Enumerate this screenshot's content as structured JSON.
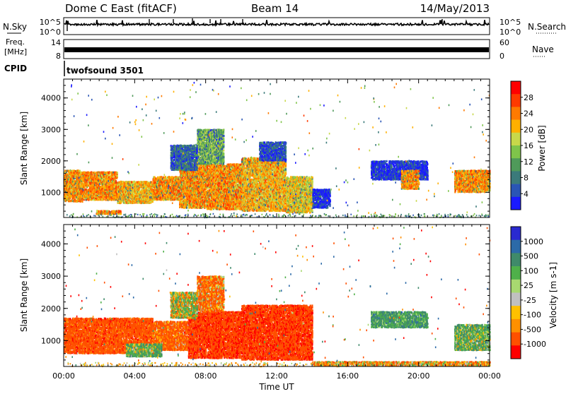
{
  "header": {
    "station": "Dome C East (fitACF)",
    "beam": "Beam 14",
    "date": "14/May/2013"
  },
  "strip_labels": {
    "nsky": "N.Sky",
    "nsky_top": "10^5",
    "nsky_bottom": "10^0",
    "nsearch": "N.Search",
    "nsearch_top": "10^5",
    "nsearch_bottom": "10^0",
    "freq_line1": "Freq.",
    "freq_line2": "[MHz]",
    "freq_top": "14",
    "freq_bottom": "8",
    "nave": "Nave",
    "nave_top": "60",
    "nave_bottom": "0",
    "cpid": "CPID",
    "cpid_value": "twofsound 3501"
  },
  "chart_data": [
    {
      "type": "heatmap",
      "panel": "power",
      "ylabel": "Slant Range [km]",
      "xlabel": "Time UT",
      "x_ticks": [
        "00:00",
        "04:00",
        "08:00",
        "12:00",
        "16:00",
        "20:00",
        "00:00"
      ],
      "x_hours": [
        0,
        4,
        8,
        12,
        16,
        20,
        24
      ],
      "y_ticks": [
        1000,
        2000,
        3000,
        4000
      ],
      "ylim": [
        200,
        4600
      ],
      "xlim_hours": [
        0,
        24
      ],
      "colorbar": {
        "label": "Power [dB]",
        "ticks": [
          "4",
          "8",
          "12",
          "16",
          "20",
          "24",
          "28"
        ],
        "range": [
          0,
          32
        ],
        "colors": [
          "#1a1aff",
          "#2a55b5",
          "#3b7a7a",
          "#4f9a5a",
          "#7fc44a",
          "#c8d84a",
          "#ffb000",
          "#ff7a00",
          "#ff3a00",
          "#ff0000"
        ]
      },
      "regions": [
        {
          "t0": 0.0,
          "t1": 1.0,
          "r0": 700,
          "r1": 1700,
          "level": 28
        },
        {
          "t0": 1.0,
          "t1": 3.0,
          "r0": 750,
          "r1": 1650,
          "level": 28
        },
        {
          "t0": 3.0,
          "t1": 5.0,
          "r0": 650,
          "r1": 1350,
          "level": 26
        },
        {
          "t0": 5.0,
          "t1": 6.5,
          "r0": 750,
          "r1": 1500,
          "level": 28
        },
        {
          "t0": 6.5,
          "t1": 8.0,
          "r0": 500,
          "r1": 1900,
          "level": 28
        },
        {
          "t0": 8.0,
          "t1": 10.0,
          "r0": 450,
          "r1": 1900,
          "level": 28
        },
        {
          "t0": 10.0,
          "t1": 12.5,
          "r0": 400,
          "r1": 2100,
          "level": 26
        },
        {
          "t0": 12.5,
          "t1": 14.0,
          "r0": 350,
          "r1": 1500,
          "level": 24
        },
        {
          "t0": 7.5,
          "t1": 9.0,
          "r0": 1900,
          "r1": 3000,
          "level": 18
        },
        {
          "t0": 6.0,
          "t1": 7.5,
          "r0": 1700,
          "r1": 2500,
          "level": 12
        },
        {
          "t0": 11.0,
          "t1": 12.5,
          "r0": 2000,
          "r1": 2600,
          "level": 10
        },
        {
          "t0": 14.0,
          "t1": 15.0,
          "r0": 500,
          "r1": 1100,
          "level": 8
        },
        {
          "t0": 17.3,
          "t1": 20.5,
          "r0": 1400,
          "r1": 2000,
          "level": 8
        },
        {
          "t0": 19.0,
          "t1": 20.0,
          "r0": 1100,
          "r1": 1700,
          "level": 28
        },
        {
          "t0": 22.0,
          "t1": 24.0,
          "r0": 1000,
          "r1": 1700,
          "level": 28
        },
        {
          "t0": 1.8,
          "t1": 3.2,
          "r0": 300,
          "r1": 420,
          "level": 28
        }
      ]
    },
    {
      "type": "heatmap",
      "panel": "velocity",
      "ylabel": "Slant Range [km]",
      "xlabel": "Time UT",
      "x_ticks": [
        "00:00",
        "04:00",
        "08:00",
        "12:00",
        "16:00",
        "20:00",
        "00:00"
      ],
      "x_hours": [
        0,
        4,
        8,
        12,
        16,
        20,
        24
      ],
      "y_ticks": [
        1000,
        2000,
        3000,
        4000
      ],
      "ylim": [
        200,
        4600
      ],
      "xlim_hours": [
        0,
        24
      ],
      "colorbar": {
        "label": "Velocity [m s-1]",
        "ticks": [
          "1000",
          "500",
          "100",
          "25",
          "-25",
          "-100",
          "-500",
          "-1000"
        ],
        "colors": [
          "#2a2ad0",
          "#2c6aa8",
          "#3f8a6a",
          "#4fb04a",
          "#a8d870",
          "#c0c0c0",
          "#ffc000",
          "#ff9000",
          "#ff5000",
          "#ff0000"
        ]
      },
      "regions": [
        {
          "t0": 0.0,
          "t1": 5.0,
          "r0": 600,
          "r1": 1700,
          "level": -300
        },
        {
          "t0": 5.0,
          "t1": 7.0,
          "r0": 700,
          "r1": 1600,
          "level": -200
        },
        {
          "t0": 7.0,
          "t1": 10.0,
          "r0": 450,
          "r1": 1900,
          "level": -400
        },
        {
          "t0": 10.0,
          "t1": 14.0,
          "r0": 400,
          "r1": 2100,
          "level": -400
        },
        {
          "t0": 7.5,
          "t1": 9.0,
          "r0": 1900,
          "r1": 3000,
          "level": -150
        },
        {
          "t0": 6.0,
          "t1": 7.5,
          "r0": 1700,
          "r1": 2500,
          "level": 100
        },
        {
          "t0": 3.5,
          "t1": 5.5,
          "r0": 500,
          "r1": 900,
          "level": 200
        },
        {
          "t0": 17.3,
          "t1": 20.5,
          "r0": 1400,
          "r1": 1900,
          "level": 300
        },
        {
          "t0": 22.0,
          "t1": 24.0,
          "r0": 700,
          "r1": 1500,
          "level": 200
        },
        {
          "t0": 14.0,
          "t1": 24.0,
          "r0": 220,
          "r1": 350,
          "level": -60
        }
      ]
    }
  ]
}
